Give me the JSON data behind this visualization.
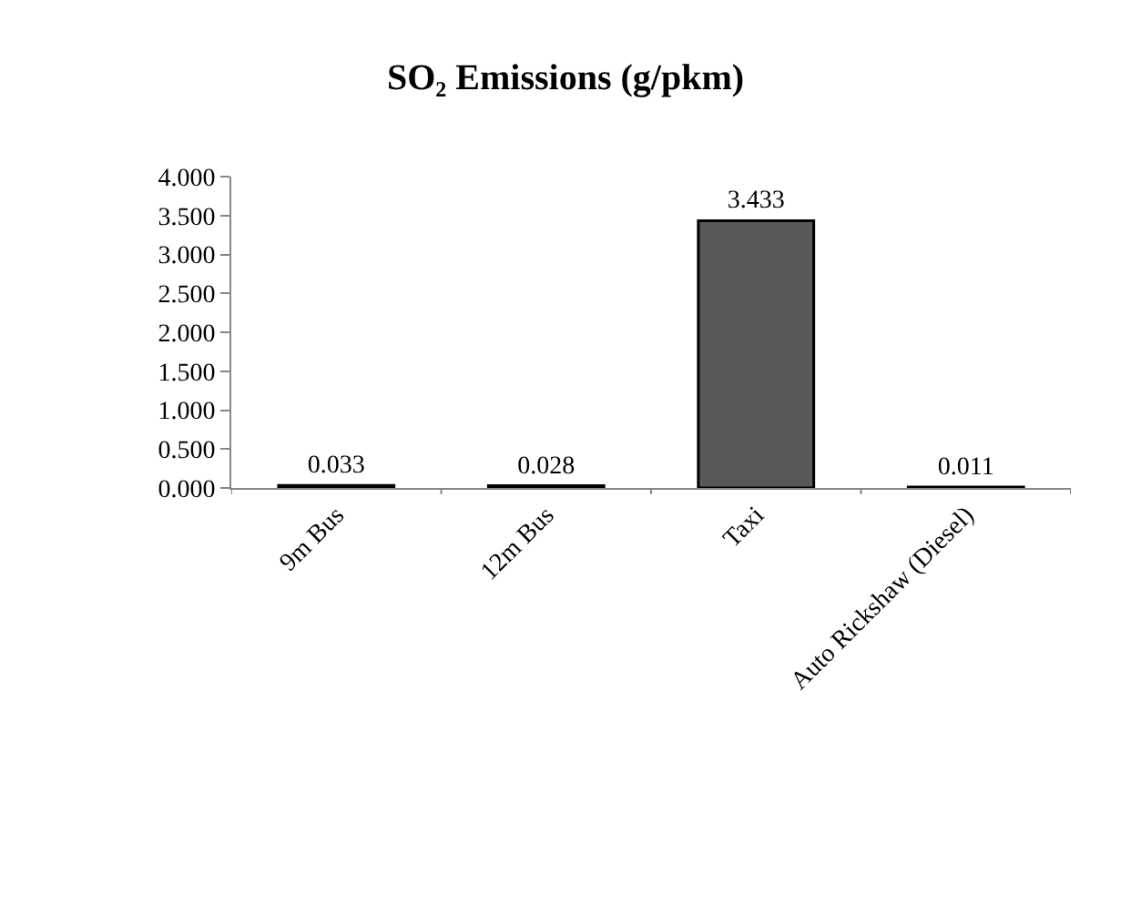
{
  "chart_data": {
    "type": "bar",
    "title": "SO₂ Emissions (g/pkm)",
    "categories": [
      "9m Bus",
      "12m Bus",
      "Taxi",
      "Auto Rickshaw (Diesel)"
    ],
    "series": [
      {
        "color": "#595959",
        "values": [
          0.033,
          0.028,
          3.433,
          0.011
        ]
      }
    ],
    "data_labels": true,
    "ylim": [
      0,
      4
    ],
    "yticks": [
      {
        "value": 0,
        "label": "0.000"
      },
      {
        "value": 0.5,
        "label": "0.500"
      },
      {
        "value": 1,
        "label": "1.000"
      },
      {
        "value": 1.5,
        "label": "1.500"
      },
      {
        "value": 2,
        "label": "2.000"
      },
      {
        "value": 2.5,
        "label": "2.500"
      },
      {
        "value": 3,
        "label": "3.000"
      },
      {
        "value": 3.5,
        "label": "3.500"
      },
      {
        "value": 4,
        "label": "4.000"
      }
    ],
    "legend": false
  }
}
